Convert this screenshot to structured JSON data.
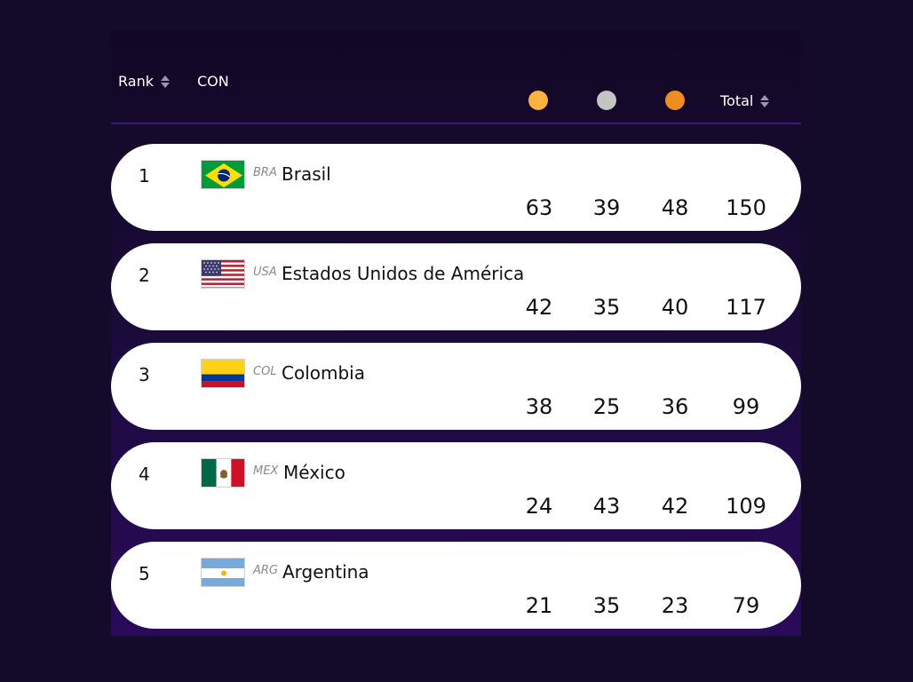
{
  "header": {
    "rank_label": "Rank",
    "con_label": "CON",
    "total_label": "Total",
    "medal_colors": {
      "gold": "#fbb23f",
      "silver": "#c4c4c4",
      "bronze": "#f08c20"
    }
  },
  "rows": [
    {
      "rank": "1",
      "code": "BRA",
      "name": "Brasil",
      "gold": "63",
      "silver": "39",
      "bronze": "48",
      "total": "150"
    },
    {
      "rank": "2",
      "code": "USA",
      "name": "Estados Unidos de América",
      "gold": "42",
      "silver": "35",
      "bronze": "40",
      "total": "117"
    },
    {
      "rank": "3",
      "code": "COL",
      "name": "Colombia",
      "gold": "38",
      "silver": "25",
      "bronze": "36",
      "total": "99"
    },
    {
      "rank": "4",
      "code": "MEX",
      "name": "México",
      "gold": "24",
      "silver": "43",
      "bronze": "42",
      "total": "109"
    },
    {
      "rank": "5",
      "code": "ARG",
      "name": "Argentina",
      "gold": "21",
      "silver": "35",
      "bronze": "23",
      "total": "79"
    }
  ]
}
